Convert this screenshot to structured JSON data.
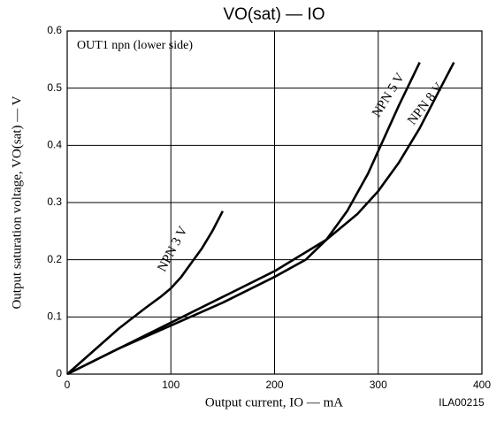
{
  "chart_data": {
    "type": "line",
    "title": "VO(sat) — IO",
    "annotation": "OUT1 npn (lower side)",
    "code": "ILA00215",
    "x_label": "Output current, IO — mA",
    "y_label": "Output saturation voltage, VO(sat) — V",
    "xlim": [
      0,
      400
    ],
    "ylim": [
      0,
      0.6
    ],
    "xticks": [
      0,
      100,
      200,
      300,
      400
    ],
    "yticks": [
      0,
      0.1,
      0.2,
      0.3,
      0.4,
      0.5,
      0.6
    ],
    "grid": true,
    "series": [
      {
        "name": "NPN 3 V",
        "color": "#000000",
        "x": [
          0,
          25,
          50,
          75,
          90,
          100,
          110,
          120,
          130,
          140,
          150
        ],
        "values": [
          0,
          0.04,
          0.08,
          0.115,
          0.135,
          0.15,
          0.17,
          0.195,
          0.22,
          0.25,
          0.285
        ]
      },
      {
        "name": "NPN 5 V",
        "color": "#000000",
        "x": [
          0,
          50,
          100,
          150,
          200,
          230,
          250,
          270,
          290,
          300,
          320,
          340
        ],
        "values": [
          0,
          0.045,
          0.085,
          0.125,
          0.17,
          0.2,
          0.235,
          0.285,
          0.35,
          0.39,
          0.47,
          0.545
        ]
      },
      {
        "name": "NPN 8 V",
        "color": "#000000",
        "x": [
          0,
          50,
          100,
          150,
          200,
          250,
          280,
          300,
          320,
          340,
          360,
          373
        ],
        "values": [
          0,
          0.045,
          0.09,
          0.135,
          0.18,
          0.235,
          0.28,
          0.32,
          0.37,
          0.43,
          0.5,
          0.545
        ]
      }
    ]
  }
}
